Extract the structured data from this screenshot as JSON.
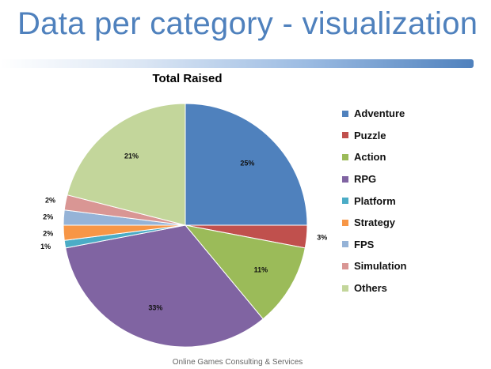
{
  "slide": {
    "title": "Data per category - visualization",
    "footer": "Online Games Consulting & Services"
  },
  "chart_data": {
    "type": "pie",
    "title": "Total Raised",
    "categories": [
      "Adventure",
      "Puzzle",
      "Action",
      "RPG",
      "Platform",
      "Strategy",
      "FPS",
      "Simulation",
      "Others"
    ],
    "values": [
      25,
      3,
      11,
      33,
      1,
      2,
      2,
      2,
      21
    ],
    "labels": [
      "25%",
      "3%",
      "11%",
      "33%",
      "1%",
      "2%",
      "2%",
      "2%",
      "21%"
    ],
    "colors": [
      "#4f81bd",
      "#c0504d",
      "#9bbb59",
      "#8064a2",
      "#4bacc6",
      "#f79646",
      "#95b3d7",
      "#d99694",
      "#c3d69b"
    ],
    "start": "12 o'clock",
    "direction": "clockwise",
    "legend_position": "right"
  }
}
